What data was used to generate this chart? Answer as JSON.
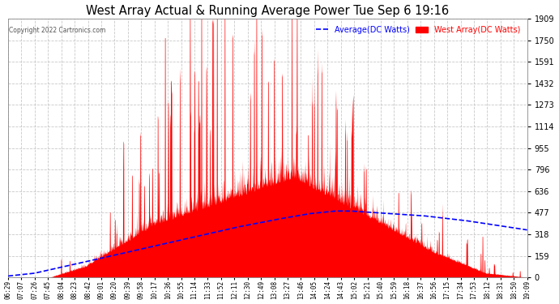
{
  "title": "West Array Actual & Running Average Power Tue Sep 6 19:16",
  "copyright": "Copyright 2022 Cartronics.com",
  "legend_avg": "Average(DC Watts)",
  "legend_west": "West Array(DC Watts)",
  "yticks": [
    0.0,
    159.1,
    318.2,
    477.3,
    636.5,
    795.6,
    954.7,
    1113.8,
    1272.9,
    1432.0,
    1591.1,
    1750.3,
    1909.4
  ],
  "ymax": 1909.4,
  "bg_color": "#ffffff",
  "fill_color": "#ff0000",
  "line_color": "#0000ff",
  "grid_color": "#bbbbbb",
  "title_color": "#000000",
  "xtick_labels": [
    "06:29",
    "07:07",
    "07:26",
    "07:45",
    "08:04",
    "08:23",
    "08:42",
    "09:01",
    "09:20",
    "09:39",
    "09:58",
    "10:17",
    "10:36",
    "10:55",
    "11:14",
    "11:33",
    "11:52",
    "12:11",
    "12:30",
    "12:49",
    "13:08",
    "13:27",
    "13:46",
    "14:05",
    "14:24",
    "14:43",
    "15:02",
    "15:21",
    "15:40",
    "15:59",
    "16:18",
    "16:37",
    "16:56",
    "17:15",
    "17:34",
    "17:53",
    "18:12",
    "18:31",
    "18:50",
    "19:09"
  ],
  "avg_x": [
    0.0,
    0.05,
    0.12,
    0.2,
    0.28,
    0.36,
    0.44,
    0.52,
    0.58,
    0.63,
    0.66,
    0.7,
    0.74,
    0.8,
    0.88,
    0.95,
    1.0
  ],
  "avg_y": [
    10,
    30,
    90,
    160,
    230,
    300,
    370,
    430,
    470,
    490,
    490,
    480,
    470,
    455,
    420,
    380,
    350
  ]
}
